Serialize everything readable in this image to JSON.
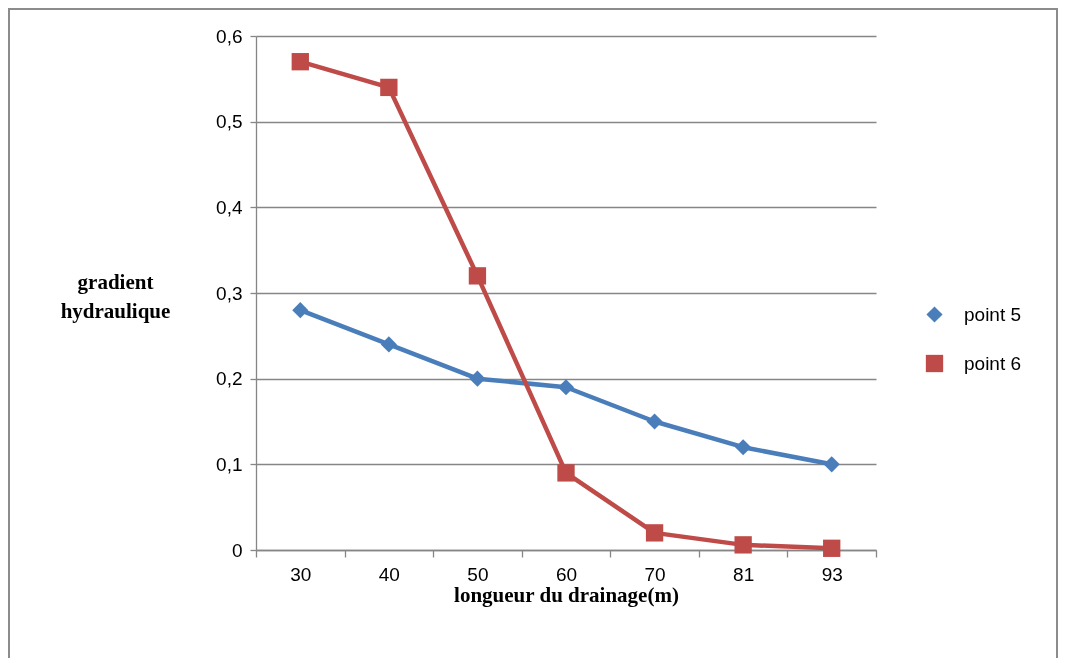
{
  "chart_data": {
    "type": "line",
    "categories": [
      "30",
      "40",
      "50",
      "60",
      "70",
      "81",
      "93"
    ],
    "xlabel": "longueur du drainage(m)",
    "ylabel": "gradient hydraulique",
    "ylim": [
      0,
      0.6
    ],
    "yticks": [
      0,
      {
        "value": 0.1,
        "label": "0,1"
      },
      {
        "value": 0.2,
        "label": "0,2"
      },
      {
        "value": 0.3,
        "label": "0,3"
      },
      {
        "value": 0.4,
        "label": "0,4"
      },
      {
        "value": 0.5,
        "label": "0,5"
      },
      {
        "value": 0.6,
        "label": "0,6"
      }
    ],
    "grid": "y",
    "legend": "right",
    "series": [
      {
        "name": "point 5",
        "color": "#4a7ebb",
        "marker": "diamond",
        "values": [
          0.28,
          0.24,
          0.2,
          0.19,
          0.15,
          0.12,
          0.1
        ]
      },
      {
        "name": "point 6",
        "color": "#be4b48",
        "marker": "square",
        "values": [
          0.57,
          0.54,
          0.32,
          0.09,
          0.02,
          0.006,
          0.002
        ]
      }
    ]
  }
}
